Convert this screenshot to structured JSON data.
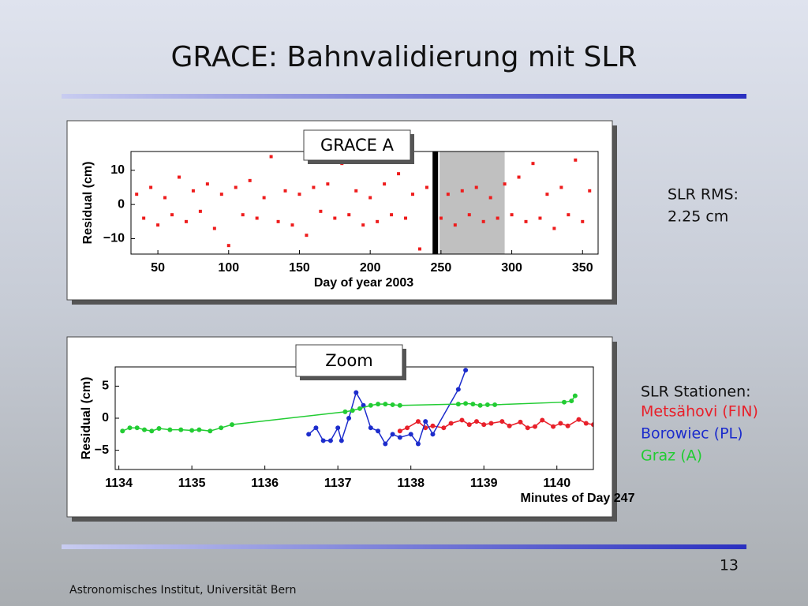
{
  "title": "GRACE: Bahnvalidierung mit SLR",
  "side_notes": {
    "rms_label": "SLR RMS:",
    "rms_value": "2.25 cm",
    "stations_label": "SLR Stationen:"
  },
  "page_number": "13",
  "footer": "Astronomisches Institut, Universität Bern",
  "chart_data": [
    {
      "type": "scatter",
      "annotation": "GRACE A",
      "xlabel": "Day of year 2003",
      "ylabel": "Residual (cm)",
      "xlim": [
        31,
        361
      ],
      "ylim": [
        -14.5,
        15.5
      ],
      "xticks": [
        50,
        100,
        150,
        200,
        250,
        300,
        350
      ],
      "yticks": [
        {
          "value": -10,
          "label": "−10"
        },
        0,
        10
      ],
      "shaded_region": [
        249,
        295
      ],
      "shade_color": "#c0c0c0",
      "vertical_line": 246,
      "series": [
        {
          "color": "#ee1c1c",
          "x": [
            35,
            40,
            45,
            50,
            55,
            60,
            65,
            70,
            75,
            80,
            85,
            90,
            95,
            100,
            105,
            110,
            115,
            120,
            125,
            130,
            135,
            140,
            145,
            150,
            155,
            160,
            165,
            170,
            175,
            180,
            185,
            190,
            195,
            200,
            205,
            210,
            215,
            220,
            225,
            230,
            235,
            240,
            250,
            255,
            260,
            265,
            270,
            275,
            280,
            285,
            290,
            295,
            300,
            305,
            310,
            315,
            320,
            325,
            330,
            335,
            340,
            345,
            350,
            355
          ],
          "values": [
            3,
            -4,
            5,
            -6,
            2,
            -3,
            8,
            -5,
            4,
            -2,
            6,
            -7,
            3,
            -12,
            5,
            -3,
            7,
            -4,
            2,
            14,
            -5,
            4,
            -6,
            3,
            -9,
            5,
            -2,
            6,
            -4,
            12,
            -3,
            4,
            -6,
            2,
            -5,
            6,
            -3,
            9,
            -4,
            3,
            -13,
            5,
            -4,
            3,
            -6,
            4,
            -3,
            5,
            -5,
            2,
            -4,
            6,
            -3,
            8,
            -5,
            12,
            -4,
            3,
            -7,
            5,
            -3,
            13,
            -5,
            4
          ]
        }
      ]
    },
    {
      "type": "line",
      "annotation": "Zoom",
      "xlabel": "Minutes of Day 247",
      "ylabel": "Residual (cm)",
      "xlim": [
        1133.95,
        1140.5
      ],
      "ylim": [
        -8,
        8
      ],
      "xticks": [
        1134,
        1135,
        1136,
        1137,
        1138,
        1139,
        1140
      ],
      "yticks": [
        {
          "value": -5,
          "label": "−5"
        },
        0,
        5
      ],
      "series": [
        {
          "name": "Metsähovi (FIN)",
          "color": "#e8202a",
          "x": [
            1137.85,
            1137.95,
            1138.1,
            1138.2,
            1138.3,
            1138.45,
            1138.55,
            1138.7,
            1138.8,
            1138.9,
            1139.0,
            1139.1,
            1139.25,
            1139.35,
            1139.5,
            1139.6,
            1139.7,
            1139.8,
            1139.95,
            1140.05,
            1140.15,
            1140.3,
            1140.4,
            1140.5
          ],
          "values": [
            -2,
            -1.5,
            -0.5,
            -1.5,
            -1.2,
            -1.5,
            -0.8,
            -0.3,
            -1,
            -0.5,
            -1,
            -0.8,
            -0.5,
            -1.2,
            -0.6,
            -1.5,
            -1.3,
            -0.3,
            -1.3,
            -0.8,
            -1.2,
            -0.2,
            -0.8,
            -1
          ]
        },
        {
          "name": "Borowiec (PL)",
          "color": "#1c2ccc",
          "x": [
            1136.6,
            1136.7,
            1136.8,
            1136.9,
            1137.0,
            1137.05,
            1137.15,
            1137.25,
            1137.35,
            1137.45,
            1137.55,
            1137.65,
            1137.75,
            1137.85,
            1138.0,
            1138.1,
            1138.2,
            1138.3,
            1138.65,
            1138.75
          ],
          "values": [
            -2.5,
            -1.5,
            -3.5,
            -3.5,
            -1.5,
            -3.5,
            0,
            4,
            2,
            -1.5,
            -2,
            -4,
            -2.5,
            -3,
            -2.5,
            -4,
            -0.5,
            -2.5,
            4.5,
            7.5
          ]
        },
        {
          "name": "Graz (A)",
          "color": "#22cc33",
          "x": [
            1134.05,
            1134.15,
            1134.25,
            1134.35,
            1134.45,
            1134.55,
            1134.7,
            1134.85,
            1135.0,
            1135.1,
            1135.25,
            1135.4,
            1135.55,
            1137.1,
            1137.2,
            1137.3,
            1137.45,
            1137.55,
            1137.65,
            1137.75,
            1137.85,
            1138.65,
            1138.75,
            1138.85,
            1138.95,
            1139.05,
            1139.15,
            1140.1,
            1140.2,
            1140.25
          ],
          "values": [
            -2,
            -1.5,
            -1.5,
            -1.8,
            -2,
            -1.6,
            -1.8,
            -1.8,
            -1.9,
            -1.8,
            -2,
            -1.5,
            -1,
            1,
            1.2,
            1.5,
            2,
            2.2,
            2.2,
            2.1,
            2,
            2.2,
            2.3,
            2.2,
            2,
            2.1,
            2.1,
            2.5,
            2.7,
            3.5
          ]
        }
      ]
    }
  ]
}
